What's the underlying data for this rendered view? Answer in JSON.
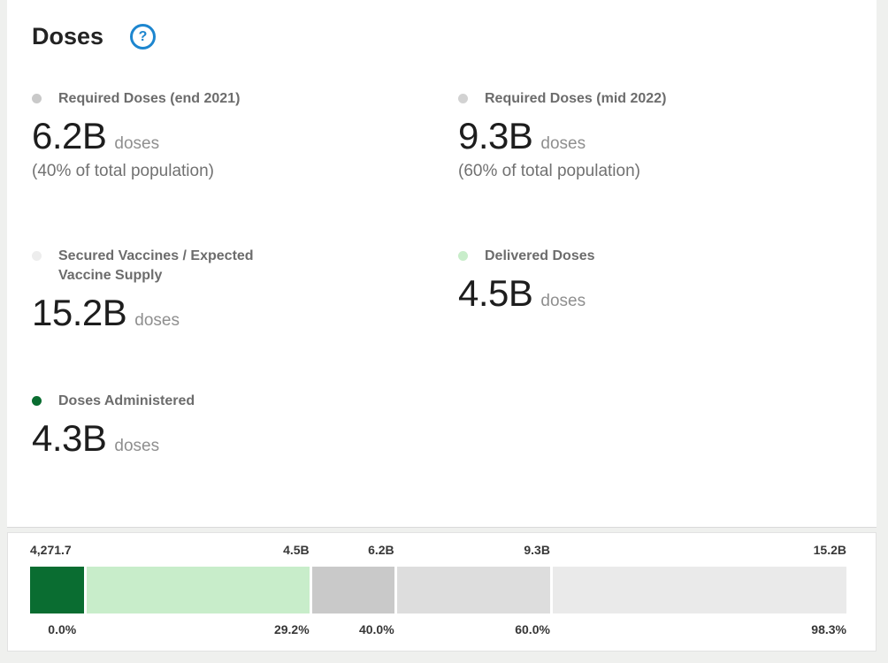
{
  "colors": {
    "accent_blue": "#1d86cf",
    "administered_green": "#0a6d31",
    "delivered_green": "#c8edca",
    "required_end_2021_gray": "#c9c9c9",
    "required_mid_2022_gray": "#dddddd",
    "secured_supply_gray": "#eaeaea",
    "page_background": "#eff0ee",
    "card_background": "#ffffff"
  },
  "header": {
    "title": "Doses",
    "help_icon": "?"
  },
  "stats": [
    {
      "id": "required-end-2021",
      "label": "Required Doses (end 2021)",
      "value": "6.2B",
      "unit": "doses",
      "note": "(40% of total population)",
      "dot_color": "#c9c9c9"
    },
    {
      "id": "required-mid-2022",
      "label": "Required Doses (mid 2022)",
      "value": "9.3B",
      "unit": "doses",
      "note": "(60% of total population)",
      "dot_color": "#d2d2d2"
    },
    {
      "id": "secured-supply",
      "label": "Secured Vaccines / Expected Vaccine Supply",
      "value": "15.2B",
      "unit": "doses",
      "note": "",
      "dot_color": "#ededed"
    },
    {
      "id": "delivered",
      "label": "Delivered Doses",
      "value": "4.5B",
      "unit": "doses",
      "note": "",
      "dot_color": "#c8edca"
    },
    {
      "id": "administered",
      "label": "Doses Administered",
      "value": "4.3B",
      "unit": "doses",
      "note": "",
      "dot_color": "#0a6d31"
    }
  ],
  "chart_data": {
    "type": "bar",
    "subtype": "horizontal-stacked-progress",
    "start_label_doses": "4,271.7",
    "start_label_pct": "0.0%",
    "segments": [
      {
        "id": "administered",
        "series": "Doses Administered",
        "color": "#0a6d31",
        "left_pct": 0,
        "width_pct": 6.6,
        "end_label_doses": "",
        "end_label_pct": ""
      },
      {
        "id": "delivered",
        "series": "Delivered Doses",
        "color": "#c8edca",
        "left_pct": 6.93,
        "width_pct": 27.27,
        "end_label_doses": "4.5B",
        "end_label_pct": "29.2%"
      },
      {
        "id": "required-end-2021",
        "series": "Required Doses (end 2021)",
        "color": "#c9c9c9",
        "left_pct": 34.53,
        "width_pct": 10.07,
        "end_label_doses": "6.2B",
        "end_label_pct": "40.0%"
      },
      {
        "id": "required-mid-2022",
        "series": "Required Doses (mid 2022)",
        "color": "#dddddd",
        "left_pct": 44.93,
        "width_pct": 18.77,
        "end_label_doses": "9.3B",
        "end_label_pct": "60.0%"
      },
      {
        "id": "secured-supply",
        "series": "Secured Vaccines / Expected Vaccine Supply",
        "color": "#eaeaea",
        "left_pct": 64.03,
        "width_pct": 35.97,
        "end_label_doses": "15.2B",
        "end_label_pct": "98.3%"
      }
    ]
  }
}
